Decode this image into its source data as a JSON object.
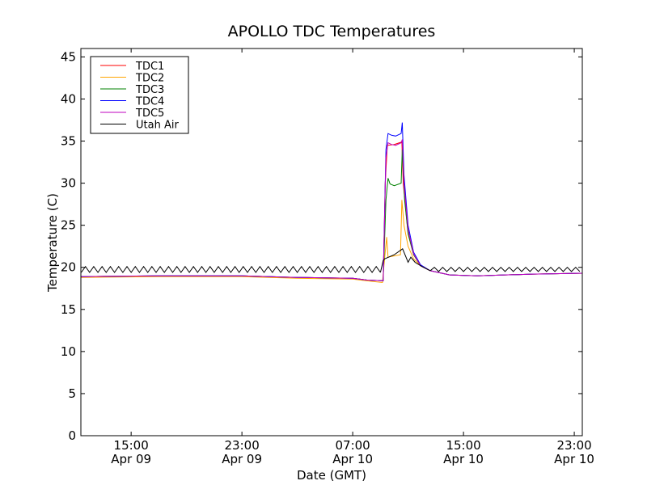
{
  "chart_data": {
    "type": "line",
    "title": "APOLLO TDC Temperatures",
    "xlabel": "Date (GMT)",
    "ylabel": "Temperature (C)",
    "x_units": "hours since Apr 09 00:00 GMT",
    "xlim": [
      11.37,
      47.58
    ],
    "ylim": [
      0,
      46
    ],
    "yticks": [
      0,
      5,
      10,
      15,
      20,
      25,
      30,
      35,
      40,
      45
    ],
    "xticks": [
      {
        "x": 15,
        "time": "15:00",
        "date": "Apr 09"
      },
      {
        "x": 23,
        "time": "23:00",
        "date": "Apr 09"
      },
      {
        "x": 31,
        "time": "07:00",
        "date": "Apr 10"
      },
      {
        "x": 39,
        "time": "15:00",
        "date": "Apr 10"
      },
      {
        "x": 47,
        "time": "23:00",
        "date": "Apr 10"
      }
    ],
    "legend_position": "top-left",
    "series": [
      {
        "name": "TDC1",
        "color": "#ff0000",
        "points": [
          [
            11.37,
            18.9
          ],
          [
            17,
            19.0
          ],
          [
            23,
            19.0
          ],
          [
            27,
            18.8
          ],
          [
            31,
            18.7
          ],
          [
            32,
            18.5
          ],
          [
            33.2,
            18.4
          ],
          [
            33.35,
            30
          ],
          [
            33.5,
            34.5
          ],
          [
            34,
            34.6
          ],
          [
            34.55,
            34.9
          ],
          [
            34.65,
            30
          ],
          [
            35,
            24
          ],
          [
            35.4,
            21.5
          ],
          [
            35.9,
            20.2
          ],
          [
            36.6,
            19.6
          ],
          [
            38,
            19.1
          ],
          [
            40,
            19.0
          ],
          [
            44,
            19.2
          ],
          [
            47.58,
            19.3
          ]
        ]
      },
      {
        "name": "TDC2",
        "color": "#ffa500",
        "points": [
          [
            11.37,
            18.8
          ],
          [
            17,
            18.9
          ],
          [
            23,
            18.9
          ],
          [
            27,
            18.7
          ],
          [
            31,
            18.6
          ],
          [
            32,
            18.4
          ],
          [
            33.15,
            18.2
          ],
          [
            33.3,
            21
          ],
          [
            33.45,
            23.6
          ],
          [
            33.55,
            21.2
          ],
          [
            33.8,
            21.3
          ],
          [
            34.45,
            21.5
          ],
          [
            34.55,
            28
          ],
          [
            34.7,
            25
          ],
          [
            35,
            22.5
          ],
          [
            35.4,
            21
          ],
          [
            35.9,
            20.2
          ],
          [
            36.6,
            19.6
          ],
          [
            38,
            19.1
          ],
          [
            40,
            19.0
          ],
          [
            44,
            19.2
          ],
          [
            47.58,
            19.3
          ]
        ]
      },
      {
        "name": "TDC3",
        "color": "#008000",
        "points": [
          [
            11.37,
            18.9
          ],
          [
            17,
            19.0
          ],
          [
            23,
            19.0
          ],
          [
            27,
            18.8
          ],
          [
            31,
            18.7
          ],
          [
            32,
            18.5
          ],
          [
            33.2,
            18.4
          ],
          [
            33.4,
            28
          ],
          [
            33.55,
            30.6
          ],
          [
            33.7,
            29.9
          ],
          [
            34.0,
            29.7
          ],
          [
            34.5,
            30
          ],
          [
            34.58,
            34
          ],
          [
            34.75,
            28
          ],
          [
            35,
            24
          ],
          [
            35.4,
            21.5
          ],
          [
            35.9,
            20.2
          ],
          [
            36.6,
            19.6
          ],
          [
            38,
            19.1
          ],
          [
            40,
            19.0
          ],
          [
            44,
            19.2
          ],
          [
            47.58,
            19.3
          ]
        ]
      },
      {
        "name": "TDC4",
        "color": "#0000ff",
        "points": [
          [
            11.37,
            18.9
          ],
          [
            17,
            19.0
          ],
          [
            23,
            19.0
          ],
          [
            27,
            18.8
          ],
          [
            31,
            18.7
          ],
          [
            32,
            18.5
          ],
          [
            33.2,
            18.4
          ],
          [
            33.4,
            34
          ],
          [
            33.55,
            35.9
          ],
          [
            33.8,
            35.7
          ],
          [
            34.1,
            35.6
          ],
          [
            34.5,
            35.9
          ],
          [
            34.58,
            37.2
          ],
          [
            34.7,
            31
          ],
          [
            35,
            25
          ],
          [
            35.4,
            21.8
          ],
          [
            35.9,
            20.3
          ],
          [
            36.6,
            19.6
          ],
          [
            38,
            19.1
          ],
          [
            40,
            19.0
          ],
          [
            44,
            19.2
          ],
          [
            47.58,
            19.3
          ]
        ]
      },
      {
        "name": "TDC5",
        "color": "#bf00bf",
        "points": [
          [
            11.37,
            18.9
          ],
          [
            17,
            19.0
          ],
          [
            23,
            19.0
          ],
          [
            27,
            18.8
          ],
          [
            31,
            18.7
          ],
          [
            32,
            18.5
          ],
          [
            33.2,
            18.4
          ],
          [
            33.4,
            33
          ],
          [
            33.55,
            34.8
          ],
          [
            33.8,
            34.6
          ],
          [
            34.1,
            34.5
          ],
          [
            34.5,
            34.8
          ],
          [
            34.58,
            35.2
          ],
          [
            34.7,
            30
          ],
          [
            35,
            24.5
          ],
          [
            35.4,
            21.6
          ],
          [
            35.9,
            20.2
          ],
          [
            36.6,
            19.6
          ],
          [
            38,
            19.1
          ],
          [
            40,
            19.0
          ],
          [
            44,
            19.2
          ],
          [
            47.58,
            19.3
          ]
        ]
      },
      {
        "name": "Utah Air",
        "color": "#000000",
        "segments": [
          {
            "x0": 11.4,
            "step": 0.3,
            "y": [
              19.4,
              20.1,
              19.4,
              20.1,
              19.4,
              20.1,
              19.4,
              20.1,
              19.4,
              20.1,
              19.4,
              20.1,
              19.4,
              20.1,
              19.4,
              20.1,
              19.4,
              20.1,
              19.4,
              20.1,
              19.4,
              20.1,
              19.4,
              20.1,
              19.4,
              20.1,
              19.4,
              20.1,
              19.4,
              20.1,
              19.4,
              20.1,
              19.4,
              20.1,
              19.4,
              20.1,
              19.4,
              20.1,
              19.4,
              20.1,
              19.4,
              20.1,
              19.4,
              20.1,
              19.4,
              20.1,
              19.4,
              20.1,
              19.4,
              20.1,
              19.4,
              20.1,
              19.4,
              20.1,
              19.4,
              20.1,
              19.4,
              20.1,
              19.4,
              20.1,
              19.4,
              20.1,
              19.4,
              20.1,
              19.4,
              20.1,
              19.4,
              20.1,
              19.4,
              20.1,
              19.4,
              20.1,
              19.4
            ]
          },
          {
            "points": [
              [
                33.0,
                19.4
              ],
              [
                33.2,
                20.8
              ],
              [
                33.3,
                21.0
              ],
              [
                34.0,
                21.5
              ],
              [
                34.6,
                22.2
              ],
              [
                35.0,
                20.6
              ],
              [
                35.2,
                21.2
              ],
              [
                35.5,
                20.6
              ],
              [
                36.0,
                20.1
              ],
              [
                36.6,
                19.6
              ]
            ]
          },
          {
            "x0": 36.6,
            "step": 0.3,
            "y": [
              19.6,
              20.0,
              19.5,
              20.0,
              19.5,
              20.0,
              19.5,
              20.0,
              19.5,
              20.0,
              19.5,
              20.0,
              19.5,
              20.0,
              19.5,
              20.0,
              19.5,
              20.0,
              19.5,
              20.0,
              19.5,
              20.0,
              19.5,
              20.0,
              19.5,
              20.0,
              19.5,
              20.0,
              19.5,
              20.0,
              19.5,
              20.0,
              19.5,
              20.0,
              19.5,
              20.0,
              19.5
            ]
          }
        ]
      }
    ]
  }
}
